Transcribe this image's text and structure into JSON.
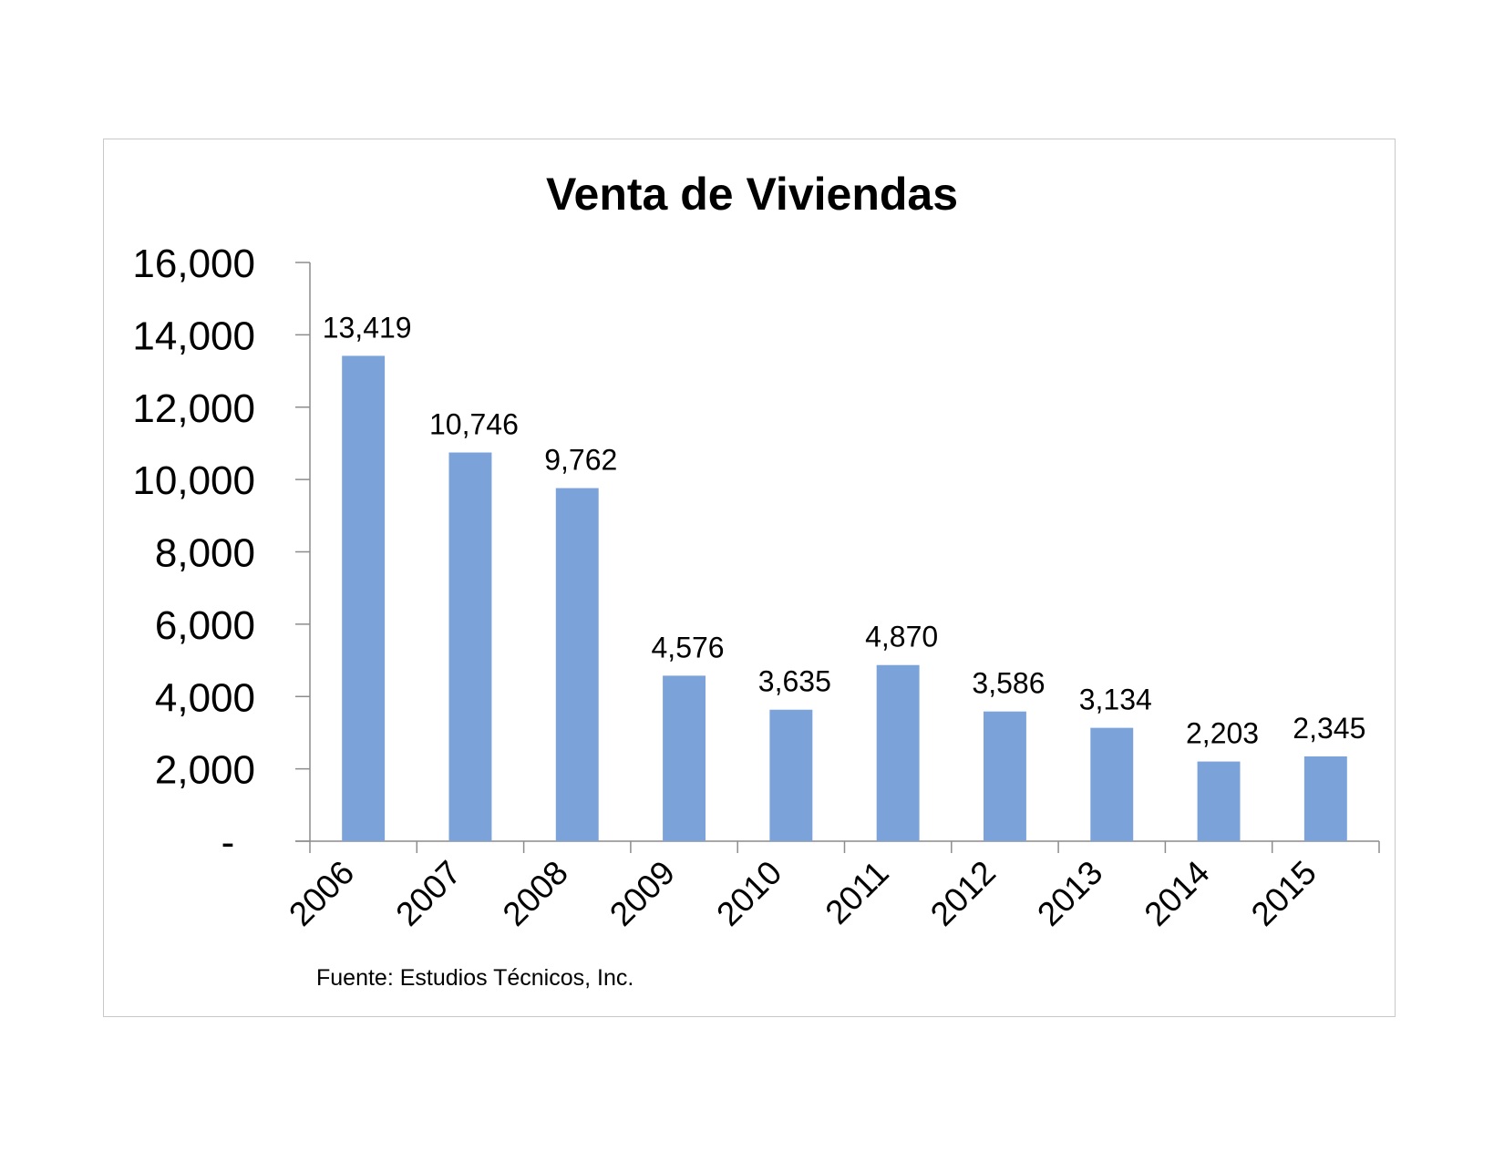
{
  "chart_data": {
    "type": "bar",
    "title": "Venta de Viviendas",
    "categories": [
      "2006",
      "2007",
      "2008",
      "2009",
      "2010",
      "2011",
      "2012",
      "2013",
      "2014",
      "2015"
    ],
    "series": [
      {
        "values": [
          13419,
          10746,
          9762,
          4576,
          3635,
          4870,
          3586,
          3134,
          2203,
          2345
        ],
        "data_labels": [
          "13,419",
          "10,746",
          "9,762",
          "4,576",
          "3,635",
          "4,870",
          "3,586",
          "3,134",
          "2,203",
          "2,345"
        ],
        "color": "#7ba3da"
      }
    ],
    "ylim": [
      0,
      16000
    ],
    "y_ticks": [
      0,
      2000,
      4000,
      6000,
      8000,
      10000,
      12000,
      14000,
      16000
    ],
    "y_tick_labels": [
      "-",
      "2,000",
      "4,000",
      "6,000",
      "8,000",
      "10,000",
      "12,000",
      "14,000",
      "16,000"
    ],
    "grid": false,
    "legend": "none",
    "source_note": "Fuente: Estudios Técnicos, Inc."
  }
}
